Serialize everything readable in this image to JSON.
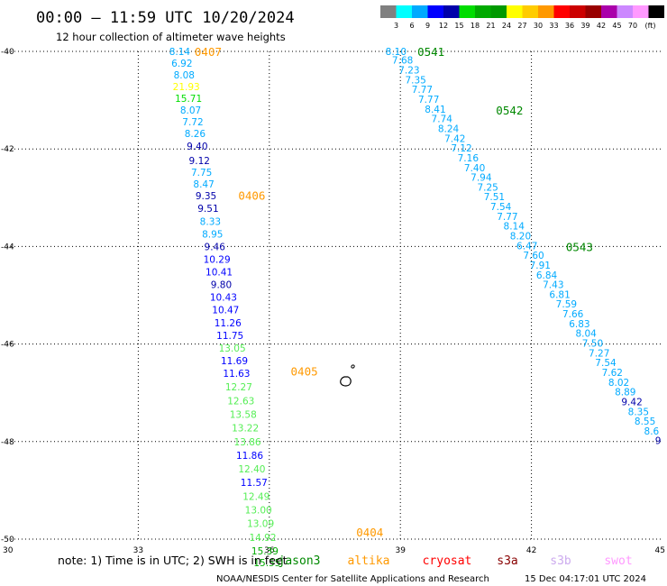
{
  "header": {
    "title": "00:00 – 11:59 UTC 10/20/2024",
    "subtitle": "12 hour collection of altimeter wave heights"
  },
  "legend": {
    "colors": [
      "#808080",
      "#00ffff",
      "#00aaff",
      "#0000ff",
      "#0000aa",
      "#00dd00",
      "#00aa00",
      "#009900",
      "#ffff00",
      "#ffcc00",
      "#ff9900",
      "#ff0000",
      "#cc0000",
      "#990000",
      "#aa00aa",
      "#cc88ff",
      "#ff99ff",
      "#000000"
    ],
    "labels": [
      "3",
      "6",
      "9",
      "12",
      "15",
      "18",
      "21",
      "24",
      "27",
      "30",
      "33",
      "36",
      "39",
      "42",
      "45",
      "70"
    ],
    "unit": "(ft)"
  },
  "note": "note: 1) Time is in UTC; 2) SWH is in feet",
  "satellites": [
    {
      "name": "jason3",
      "color": "#008800"
    },
    {
      "name": "altika",
      "color": "#ff9900"
    },
    {
      "name": "cryosat",
      "color": "#ff0000"
    },
    {
      "name": "s3a",
      "color": "#880000"
    },
    {
      "name": "s3b",
      "color": "#ccaaee"
    },
    {
      "name": "swot",
      "color": "#ff99ff"
    }
  ],
  "credit": "NOAA/NESDIS Center for Satellite Applications and Research",
  "timestamp": "15 Dec 04:17:01 UTC 2024",
  "chart_data": {
    "type": "scatter",
    "x_ticks": [
      30,
      33,
      36,
      39,
      42,
      45
    ],
    "y_ticks": [
      -40,
      -42,
      -44,
      -46,
      -48,
      -50
    ],
    "xlim": [
      30,
      45
    ],
    "ylim": [
      -50,
      -40
    ],
    "grid": true,
    "pass_labels": [
      {
        "text": "0407",
        "x": 34.6,
        "y": -40.0,
        "color": "#ff9900"
      },
      {
        "text": "0406",
        "x": 35.6,
        "y": -42.95,
        "color": "#ff9900"
      },
      {
        "text": "0405",
        "x": 36.8,
        "y": -46.55,
        "color": "#ff9900"
      },
      {
        "text": "0404",
        "x": 38.3,
        "y": -49.85,
        "color": "#ff9900"
      },
      {
        "text": "0541",
        "x": 39.7,
        "y": -40.0,
        "color": "#008800"
      },
      {
        "text": "0542",
        "x": 41.5,
        "y": -41.2,
        "color": "#008800"
      },
      {
        "text": "0543",
        "x": 43.1,
        "y": -44.0,
        "color": "#008800"
      }
    ],
    "series": [
      {
        "points": [
          {
            "x": 33.95,
            "y": -40.0,
            "v": "8.14",
            "c": "#00aaff"
          },
          {
            "x": 34.0,
            "y": -40.24,
            "v": "6.92",
            "c": "#00aaff"
          },
          {
            "x": 34.05,
            "y": -40.48,
            "v": "8.08",
            "c": "#00aaff"
          },
          {
            "x": 34.1,
            "y": -40.72,
            "v": "21.93",
            "c": "#ffff00"
          },
          {
            "x": 34.15,
            "y": -40.96,
            "v": "15.71",
            "c": "#00dd00"
          },
          {
            "x": 34.2,
            "y": -41.2,
            "v": "8.07",
            "c": "#00aaff"
          },
          {
            "x": 34.25,
            "y": -41.44,
            "v": "7.72",
            "c": "#00aaff"
          },
          {
            "x": 34.3,
            "y": -41.68,
            "v": "8.26",
            "c": "#00aaff"
          },
          {
            "x": 34.35,
            "y": -41.94,
            "v": "9.40",
            "c": "#0000aa"
          },
          {
            "x": 34.4,
            "y": -42.24,
            "v": "9.12",
            "c": "#0000aa"
          },
          {
            "x": 34.45,
            "y": -42.48,
            "v": "7.75",
            "c": "#00aaff"
          },
          {
            "x": 34.5,
            "y": -42.72,
            "v": "8.47",
            "c": "#00aaff"
          },
          {
            "x": 34.55,
            "y": -42.96,
            "v": "9.35",
            "c": "#0000aa"
          },
          {
            "x": 34.6,
            "y": -43.22,
            "v": "9.51",
            "c": "#0000aa"
          },
          {
            "x": 34.65,
            "y": -43.48,
            "v": "8.33",
            "c": "#00aaff"
          },
          {
            "x": 34.7,
            "y": -43.74,
            "v": "8.95",
            "c": "#00aaff"
          },
          {
            "x": 34.75,
            "y": -44.0,
            "v": "9.46",
            "c": "#0000aa"
          },
          {
            "x": 34.8,
            "y": -44.26,
            "v": "10.29",
            "c": "#0000ff"
          },
          {
            "x": 34.85,
            "y": -44.52,
            "v": "10.41",
            "c": "#0000ff"
          },
          {
            "x": 34.9,
            "y": -44.78,
            "v": "9.80",
            "c": "#0000aa"
          },
          {
            "x": 34.95,
            "y": -45.04,
            "v": "10.43",
            "c": "#0000ff"
          },
          {
            "x": 35.0,
            "y": -45.3,
            "v": "10.47",
            "c": "#0000ff"
          },
          {
            "x": 35.05,
            "y": -45.56,
            "v": "11.26",
            "c": "#0000ff"
          },
          {
            "x": 35.1,
            "y": -45.82,
            "v": "11.75",
            "c": "#0000ff"
          },
          {
            "x": 35.15,
            "y": -46.08,
            "v": "13.05",
            "c": "#55ee55"
          },
          {
            "x": 35.2,
            "y": -46.34,
            "v": "11.69",
            "c": "#0000ff"
          },
          {
            "x": 35.25,
            "y": -46.6,
            "v": "11.63",
            "c": "#0000ff"
          },
          {
            "x": 35.3,
            "y": -46.88,
            "v": "12.27",
            "c": "#55ee55"
          },
          {
            "x": 35.35,
            "y": -47.16,
            "v": "12.63",
            "c": "#55ee55"
          },
          {
            "x": 35.4,
            "y": -47.44,
            "v": "13.58",
            "c": "#55ee55"
          },
          {
            "x": 35.45,
            "y": -47.72,
            "v": "13.22",
            "c": "#55ee55"
          },
          {
            "x": 35.5,
            "y": -48.0,
            "v": "13.86",
            "c": "#55ee55"
          },
          {
            "x": 35.55,
            "y": -48.28,
            "v": "11.86",
            "c": "#0000ff"
          },
          {
            "x": 35.6,
            "y": -48.56,
            "v": "12.40",
            "c": "#55ee55"
          },
          {
            "x": 35.65,
            "y": -48.84,
            "v": "11.57",
            "c": "#0000ff"
          },
          {
            "x": 35.7,
            "y": -49.12,
            "v": "12.49",
            "c": "#55ee55"
          },
          {
            "x": 35.75,
            "y": -49.4,
            "v": "13.00",
            "c": "#55ee55"
          },
          {
            "x": 35.8,
            "y": -49.68,
            "v": "13.09",
            "c": "#55ee55"
          },
          {
            "x": 35.85,
            "y": -49.96,
            "v": "14.92",
            "c": "#55ee55"
          },
          {
            "x": 35.9,
            "y": -50.24,
            "v": "15.39",
            "c": "#00aa00"
          },
          {
            "x": 35.95,
            "y": -50.48,
            "v": "15.55",
            "c": "#00aa00"
          }
        ]
      },
      {
        "points": [
          {
            "x": 38.9,
            "y": -40.0,
            "v": "8.10",
            "c": "#00aaff"
          },
          {
            "x": 39.05,
            "y": -40.18,
            "v": "7.68",
            "c": "#00aaff"
          },
          {
            "x": 39.2,
            "y": -40.38,
            "v": "7.23",
            "c": "#00aaff"
          },
          {
            "x": 39.35,
            "y": -40.58,
            "v": "7.35",
            "c": "#00aaff"
          },
          {
            "x": 39.5,
            "y": -40.78,
            "v": "7.77",
            "c": "#00aaff"
          },
          {
            "x": 39.65,
            "y": -40.98,
            "v": "7.77",
            "c": "#00aaff"
          },
          {
            "x": 39.8,
            "y": -41.18,
            "v": "8.41",
            "c": "#00aaff"
          },
          {
            "x": 39.95,
            "y": -41.38,
            "v": "7.74",
            "c": "#00aaff"
          },
          {
            "x": 40.1,
            "y": -41.58,
            "v": "8.24",
            "c": "#00aaff"
          },
          {
            "x": 40.25,
            "y": -41.78,
            "v": "7.42",
            "c": "#00aaff"
          },
          {
            "x": 40.4,
            "y": -41.98,
            "v": "7.12",
            "c": "#00aaff"
          },
          {
            "x": 40.55,
            "y": -42.18,
            "v": "7.16",
            "c": "#00aaff"
          },
          {
            "x": 40.7,
            "y": -42.38,
            "v": "7.40",
            "c": "#00aaff"
          },
          {
            "x": 40.85,
            "y": -42.58,
            "v": "7.94",
            "c": "#00aaff"
          },
          {
            "x": 41.0,
            "y": -42.78,
            "v": "7.25",
            "c": "#00aaff"
          },
          {
            "x": 41.15,
            "y": -42.98,
            "v": "7.51",
            "c": "#00aaff"
          },
          {
            "x": 41.3,
            "y": -43.18,
            "v": "7.54",
            "c": "#00aaff"
          },
          {
            "x": 41.45,
            "y": -43.38,
            "v": "7.77",
            "c": "#00aaff"
          },
          {
            "x": 41.6,
            "y": -43.58,
            "v": "8.14",
            "c": "#00aaff"
          },
          {
            "x": 41.75,
            "y": -43.78,
            "v": "8.20",
            "c": "#00aaff"
          },
          {
            "x": 41.9,
            "y": -43.98,
            "v": "6.47",
            "c": "#00aaff"
          },
          {
            "x": 42.05,
            "y": -44.18,
            "v": "7.60",
            "c": "#00aaff"
          },
          {
            "x": 42.2,
            "y": -44.38,
            "v": "7.91",
            "c": "#00aaff"
          },
          {
            "x": 42.35,
            "y": -44.58,
            "v": "6.84",
            "c": "#00aaff"
          },
          {
            "x": 42.5,
            "y": -44.78,
            "v": "7.43",
            "c": "#00aaff"
          },
          {
            "x": 42.65,
            "y": -44.98,
            "v": "6.81",
            "c": "#00aaff"
          },
          {
            "x": 42.8,
            "y": -45.18,
            "v": "7.59",
            "c": "#00aaff"
          },
          {
            "x": 42.95,
            "y": -45.38,
            "v": "7.66",
            "c": "#00aaff"
          },
          {
            "x": 43.1,
            "y": -45.58,
            "v": "6.83",
            "c": "#00aaff"
          },
          {
            "x": 43.25,
            "y": -45.78,
            "v": "8.04",
            "c": "#00aaff"
          },
          {
            "x": 43.4,
            "y": -45.98,
            "v": "7.50",
            "c": "#00aaff"
          },
          {
            "x": 43.55,
            "y": -46.18,
            "v": "7.27",
            "c": "#00aaff"
          },
          {
            "x": 43.7,
            "y": -46.38,
            "v": "7.54",
            "c": "#00aaff"
          },
          {
            "x": 43.85,
            "y": -46.58,
            "v": "7.62",
            "c": "#00aaff"
          },
          {
            "x": 44.0,
            "y": -46.78,
            "v": "8.02",
            "c": "#00aaff"
          },
          {
            "x": 44.15,
            "y": -46.98,
            "v": "8.89",
            "c": "#00aaff"
          },
          {
            "x": 44.3,
            "y": -47.18,
            "v": "9.42",
            "c": "#0000aa"
          },
          {
            "x": 44.45,
            "y": -47.38,
            "v": "8.35",
            "c": "#00aaff"
          },
          {
            "x": 44.6,
            "y": -47.58,
            "v": "8.55",
            "c": "#00aaff"
          },
          {
            "x": 44.75,
            "y": -47.78,
            "v": "8.6",
            "c": "#00aaff"
          },
          {
            "x": 44.9,
            "y": -47.98,
            "v": "9",
            "c": "#0000aa"
          }
        ]
      }
    ]
  }
}
